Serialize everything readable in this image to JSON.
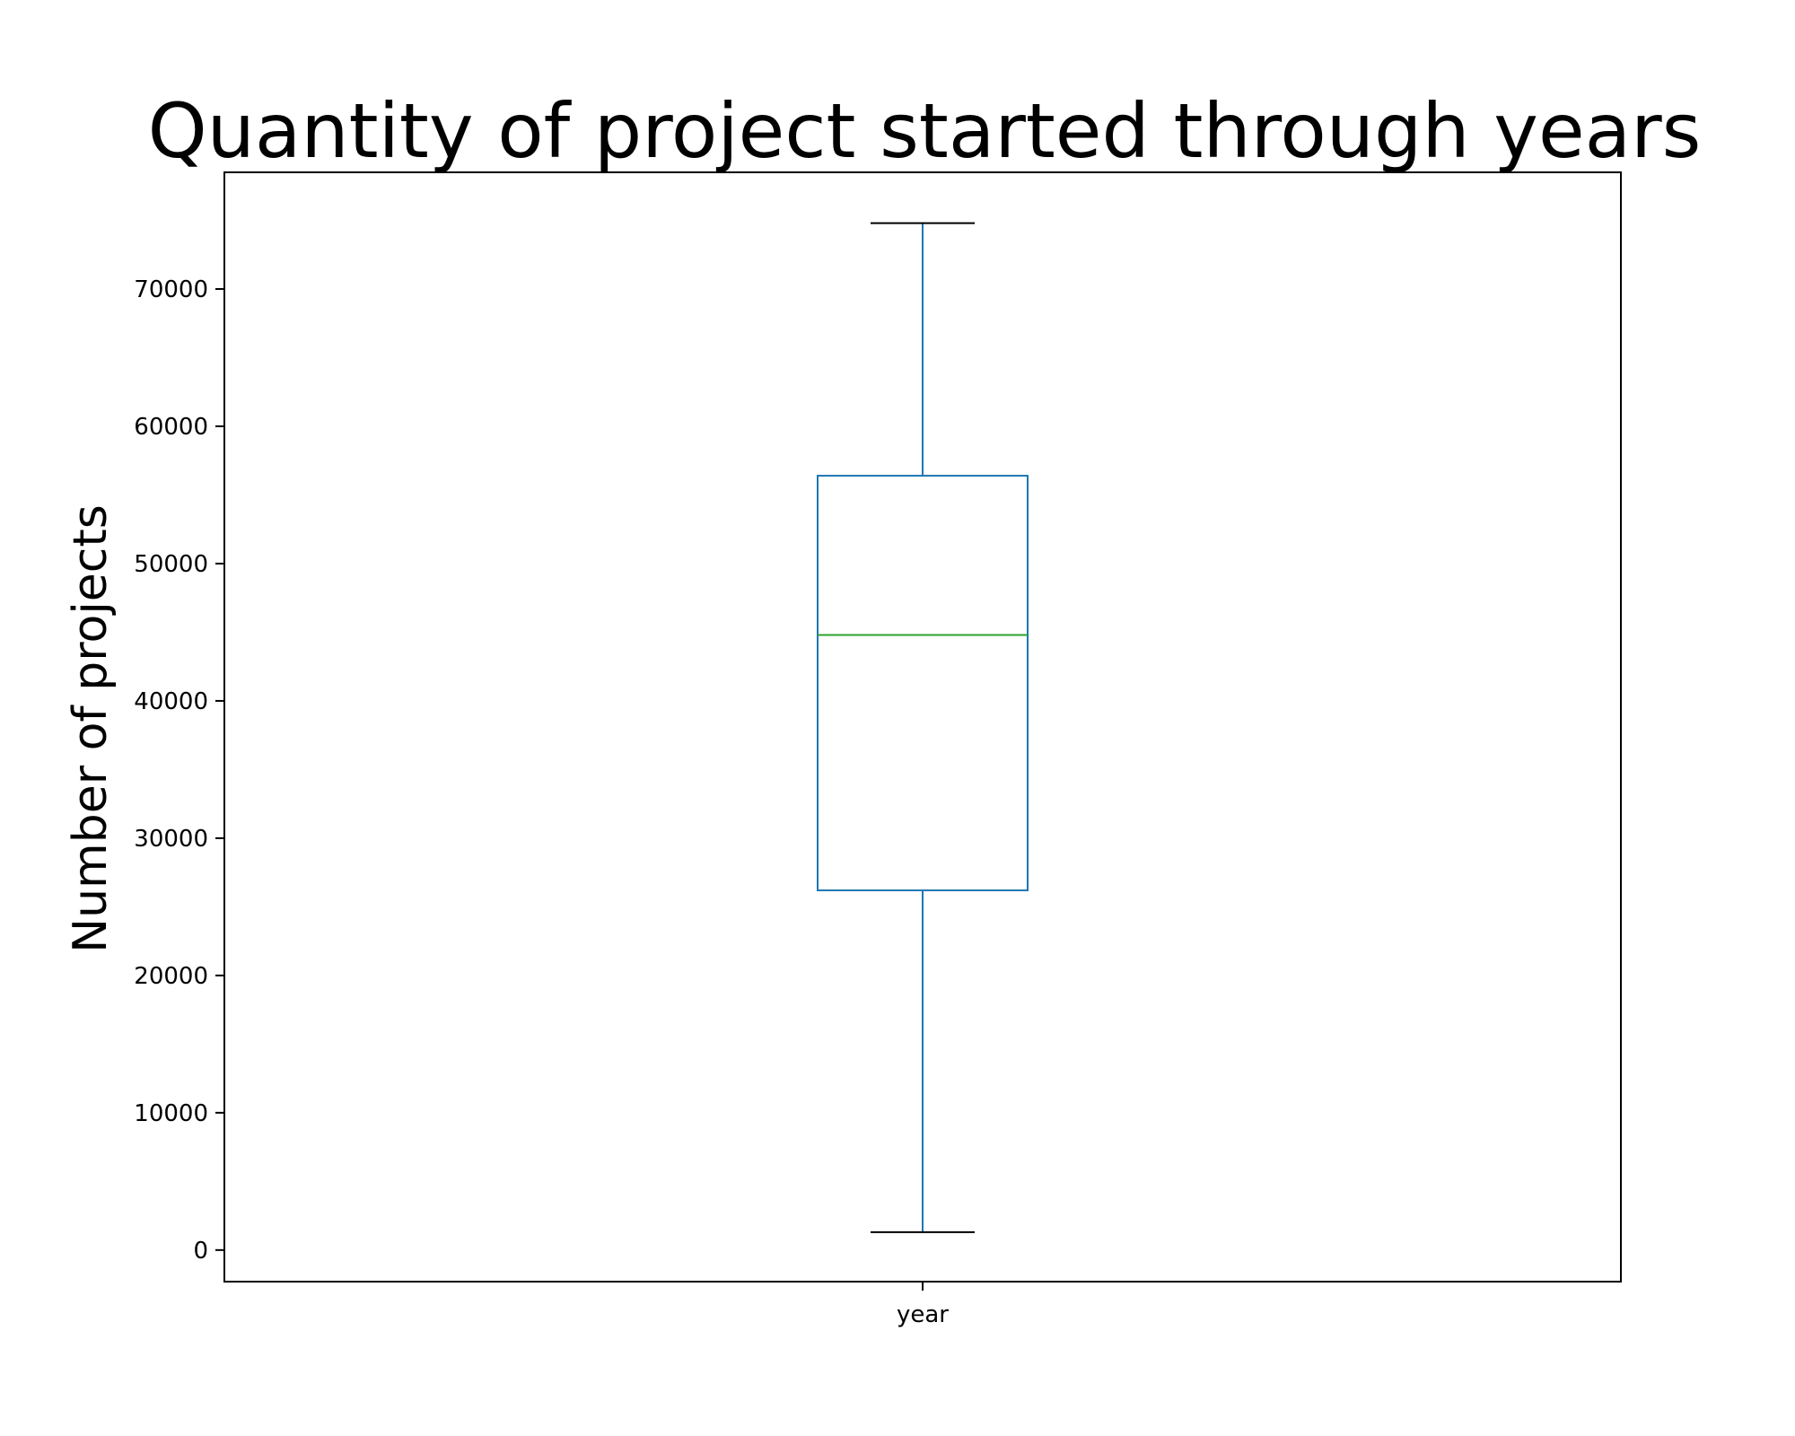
{
  "chart_data": {
    "type": "box",
    "title": "Quantity of project started through years",
    "xlabel": "",
    "ylabel": "Number of projects",
    "categories": [
      "year"
    ],
    "ylim": [
      -2300,
      78500
    ],
    "yticks": [
      0,
      10000,
      20000,
      30000,
      40000,
      50000,
      60000,
      70000
    ],
    "grid": false,
    "series": [
      {
        "category": "year",
        "whisker_low": 1300,
        "q1": 26200,
        "median": 44800,
        "q3": 56400,
        "whisker_high": 74800
      }
    ],
    "colors": {
      "box": "#1f77b4",
      "whisker": "#1f77b4",
      "median": "#2ca02c",
      "caps": "#000000",
      "axes": "#000000"
    }
  }
}
